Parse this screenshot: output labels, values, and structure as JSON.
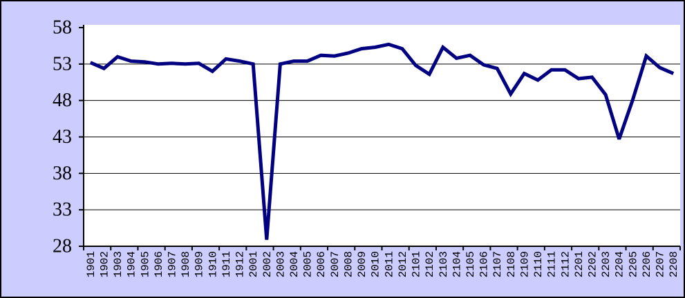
{
  "chart_data": {
    "type": "line",
    "title": "",
    "xlabel": "",
    "ylabel": "",
    "categories": [
      "1901",
      "1902",
      "1903",
      "1904",
      "1905",
      "1906",
      "1907",
      "1908",
      "1909",
      "1910",
      "1911",
      "1912",
      "2001",
      "2002",
      "2003",
      "2004",
      "2005",
      "2006",
      "2007",
      "2008",
      "2009",
      "2010",
      "2011",
      "2012",
      "2101",
      "2102",
      "2103",
      "2104",
      "2105",
      "2106",
      "2107",
      "2108",
      "2109",
      "2110",
      "2111",
      "2112",
      "2201",
      "2202",
      "2203",
      "2204",
      "2205",
      "2206",
      "2207",
      "2208"
    ],
    "series": [
      {
        "name": "",
        "values": [
          53.2,
          52.4,
          54.0,
          53.4,
          53.3,
          53.0,
          53.1,
          53.0,
          53.1,
          52.0,
          53.7,
          53.4,
          53.0,
          28.9,
          53.0,
          53.4,
          53.4,
          54.2,
          54.1,
          54.5,
          55.1,
          55.3,
          55.7,
          55.1,
          52.8,
          51.6,
          55.3,
          53.8,
          54.2,
          52.9,
          52.4,
          48.9,
          51.7,
          50.8,
          52.2,
          52.2,
          51.0,
          51.2,
          48.8,
          42.7,
          48.1,
          54.1,
          52.5,
          51.7
        ]
      }
    ],
    "ylim": [
      28,
      58
    ],
    "yticks": [
      28,
      33,
      38,
      43,
      48,
      53,
      58
    ],
    "grid": true,
    "legend_position": "none",
    "x_label_rotation": -90,
    "x_tick_mark_interval": 2,
    "colors": {
      "line": "#000080",
      "chart_background": "#CCCCFF",
      "plot_background": "#FFFFFF",
      "axis": "#000000",
      "gridline": "#000000",
      "tick_label": "#000000",
      "outer_border": "#000000"
    }
  }
}
